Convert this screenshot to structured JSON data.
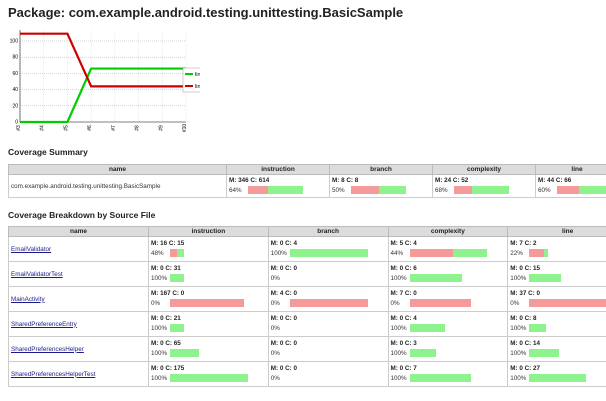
{
  "page": {
    "title": "Package: com.example.android.testing.unittesting.BasicSample"
  },
  "chart_data": {
    "type": "line",
    "x": [
      "#3",
      "#4",
      "#5",
      "#6",
      "#7",
      "#8",
      "#9",
      "#10"
    ],
    "ylim": [
      0,
      100
    ],
    "yticks": [
      "100",
      "80",
      "60",
      "40",
      "20",
      "0"
    ],
    "series": [
      {
        "name": "lineCovered",
        "color": "#00cc00",
        "values": [
          0,
          0,
          0,
          66,
          66,
          66,
          66,
          66
        ]
      },
      {
        "name": "lineMissed",
        "color": "#cc0000",
        "values": [
          109,
          109,
          109,
          44,
          44,
          44,
          44,
          44
        ]
      }
    ],
    "grid": true,
    "legend": "right"
  },
  "summary": {
    "heading": "Coverage Summary",
    "headers": [
      "name",
      "instruction",
      "branch",
      "complexity",
      "line"
    ],
    "row": {
      "name": "com.example.android.testing.unittesting.BasicSample",
      "metrics": [
        {
          "mc": "M: 346 C: 614",
          "pct": "64%",
          "covered": 0.64
        },
        {
          "mc": "M: 8 C: 8",
          "pct": "50%",
          "covered": 0.5
        },
        {
          "mc": "M: 24 C: 52",
          "pct": "68%",
          "covered": 0.68
        },
        {
          "mc": "M: 44 C: 66",
          "pct": "60%",
          "covered": 0.6
        }
      ]
    }
  },
  "breakdown": {
    "heading": "Coverage Breakdown by Source File",
    "headers": [
      "name",
      "instruction",
      "branch",
      "complexity",
      "line"
    ],
    "rows": [
      {
        "name": "EmailValidator",
        "metrics": [
          {
            "mc": "M: 16 C: 15",
            "pct": "48%",
            "covered": 0.48,
            "total": 31
          },
          {
            "mc": "M: 0 C: 4",
            "pct": "100%",
            "covered": 1,
            "total": 4
          },
          {
            "mc": "M: 5 C: 4",
            "pct": "44%",
            "covered": 0.44,
            "total": 9
          },
          {
            "mc": "M: 7 C: 2",
            "pct": "22%",
            "covered": 0.22,
            "total": 9
          }
        ]
      },
      {
        "name": "EmailValidatorTest",
        "metrics": [
          {
            "mc": "M: 0 C: 31",
            "pct": "100%",
            "covered": 1,
            "total": 31
          },
          {
            "mc": "M: 0 C: 0",
            "pct": "0%",
            "covered": 0,
            "total": 0
          },
          {
            "mc": "M: 0 C: 6",
            "pct": "100%",
            "covered": 1,
            "total": 6
          },
          {
            "mc": "M: 0 C: 15",
            "pct": "100%",
            "covered": 1,
            "total": 15
          }
        ]
      },
      {
        "name": "MainActivity",
        "metrics": [
          {
            "mc": "M: 167 C: 0",
            "pct": "0%",
            "covered": 0,
            "total": 167
          },
          {
            "mc": "M: 4 C: 0",
            "pct": "0%",
            "covered": 0,
            "total": 4
          },
          {
            "mc": "M: 7 C: 0",
            "pct": "0%",
            "covered": 0,
            "total": 7
          },
          {
            "mc": "M: 37 C: 0",
            "pct": "0%",
            "covered": 0,
            "total": 37
          }
        ]
      },
      {
        "name": "SharedPreferenceEntry",
        "metrics": [
          {
            "mc": "M: 0 C: 21",
            "pct": "100%",
            "covered": 1,
            "total": 21
          },
          {
            "mc": "M: 0 C: 0",
            "pct": "0%",
            "covered": 0,
            "total": 0
          },
          {
            "mc": "M: 0 C: 4",
            "pct": "100%",
            "covered": 1,
            "total": 4
          },
          {
            "mc": "M: 0 C: 8",
            "pct": "100%",
            "covered": 1,
            "total": 8
          }
        ]
      },
      {
        "name": "SharedPreferencesHelper",
        "metrics": [
          {
            "mc": "M: 0 C: 65",
            "pct": "100%",
            "covered": 1,
            "total": 65
          },
          {
            "mc": "M: 0 C: 0",
            "pct": "0%",
            "covered": 0,
            "total": 0
          },
          {
            "mc": "M: 0 C: 3",
            "pct": "100%",
            "covered": 1,
            "total": 3
          },
          {
            "mc": "M: 0 C: 14",
            "pct": "100%",
            "covered": 1,
            "total": 14
          }
        ]
      },
      {
        "name": "SharedPreferencesHelperTest",
        "metrics": [
          {
            "mc": "M: 0 C: 175",
            "pct": "100%",
            "covered": 1,
            "total": 175
          },
          {
            "mc": "M: 0 C: 0",
            "pct": "0%",
            "covered": 0,
            "total": 0
          },
          {
            "mc": "M: 0 C: 7",
            "pct": "100%",
            "covered": 1,
            "total": 7
          },
          {
            "mc": "M: 0 C: 27",
            "pct": "100%",
            "covered": 1,
            "total": 27
          }
        ]
      }
    ]
  },
  "colors": {
    "covered": "#8ef28e",
    "missed": "#f49a9a",
    "header_bg": "#dcdcdc",
    "link": "#1a1a8a"
  }
}
